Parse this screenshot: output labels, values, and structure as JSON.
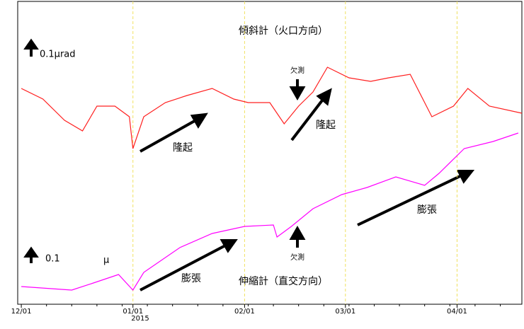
{
  "chart_data": {
    "type": "line",
    "series": [
      {
        "name": "傾斜計（火口方向）",
        "scale_label": "0.1μrad",
        "color": "#ff2020",
        "x": [
          0,
          6,
          12,
          17,
          21,
          26,
          30,
          31,
          34,
          40,
          46,
          53,
          59,
          63,
          69,
          73,
          77,
          81,
          85,
          91,
          97,
          102,
          108,
          114,
          120,
          124,
          130,
          139
        ],
        "values": [
          0.1,
          0.04,
          -0.08,
          -0.14,
          0,
          0,
          -0.06,
          -0.24,
          -0.06,
          0.02,
          0.06,
          0.1,
          0.04,
          0.02,
          0.02,
          -0.1,
          0,
          0.08,
          0.22,
          0.16,
          0.14,
          0.16,
          0.18,
          -0.06,
          0,
          0.1,
          0,
          -0.04
        ]
      },
      {
        "name": "伸縮計（直交方向）",
        "scale_label": "0.1",
        "unit_label": "μ",
        "color": "#ff00ff",
        "x": [
          0,
          14,
          20,
          27,
          31,
          34,
          44,
          53,
          62,
          70,
          71,
          75,
          81,
          89,
          96,
          104,
          112,
          116,
          123,
          131,
          138
        ],
        "values": [
          0,
          -0.02,
          0.02,
          0.068,
          -0.02,
          0.08,
          0.22,
          0.3,
          0.34,
          0.348,
          0.28,
          0.34,
          0.44,
          0.52,
          0.56,
          0.62,
          0.572,
          0.64,
          0.78,
          0.82,
          0.868
        ]
      }
    ],
    "xlim": [
      -1,
      139
    ],
    "xticks": [
      {
        "value": 0,
        "label": "12/01"
      },
      {
        "value": 31,
        "label": "01/01"
      },
      {
        "value": 62,
        "label": "02/01"
      },
      {
        "value": 90,
        "label": "03/01"
      },
      {
        "value": 121,
        "label": "04/01"
      }
    ],
    "year_label": "2015",
    "annotations": {
      "missing_top": "欠測",
      "missing_bottom": "欠測",
      "uplift_1": "隆起",
      "uplift_2": "隆起",
      "expansion_1": "膨張",
      "expansion_2": "膨張"
    },
    "grid": true
  }
}
